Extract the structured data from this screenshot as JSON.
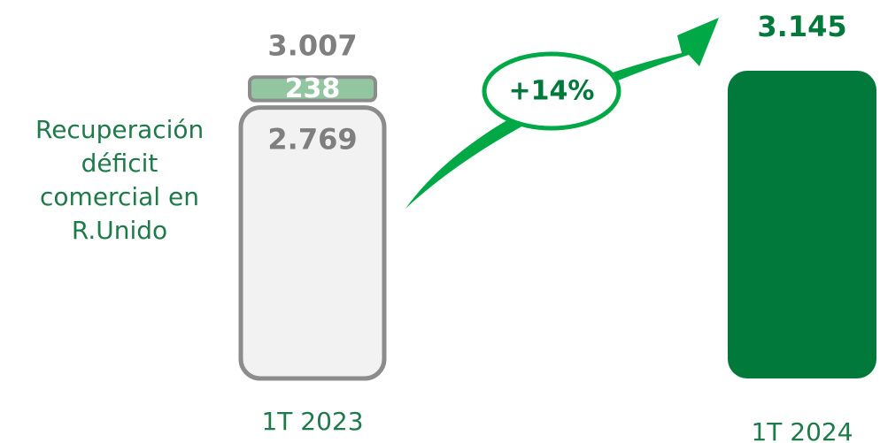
{
  "chart_data": {
    "type": "bar",
    "categories": [
      "1T 2023",
      "1T 2024"
    ],
    "series": [
      {
        "colors": [
          "#f2f2f2",
          "#00793a"
        ],
        "values": [
          2769,
          3145
        ],
        "value_labels": [
          "2.769",
          "3.145"
        ]
      },
      {
        "name": "Recuperación déficit comercial en R.Unido",
        "color": "#93c5a1",
        "values": [
          238,
          null
        ],
        "value_labels": [
          "238",
          null
        ]
      }
    ],
    "totals": [
      3007,
      null
    ],
    "total_labels": [
      "3.007",
      null
    ],
    "annotation": "+14%"
  }
}
